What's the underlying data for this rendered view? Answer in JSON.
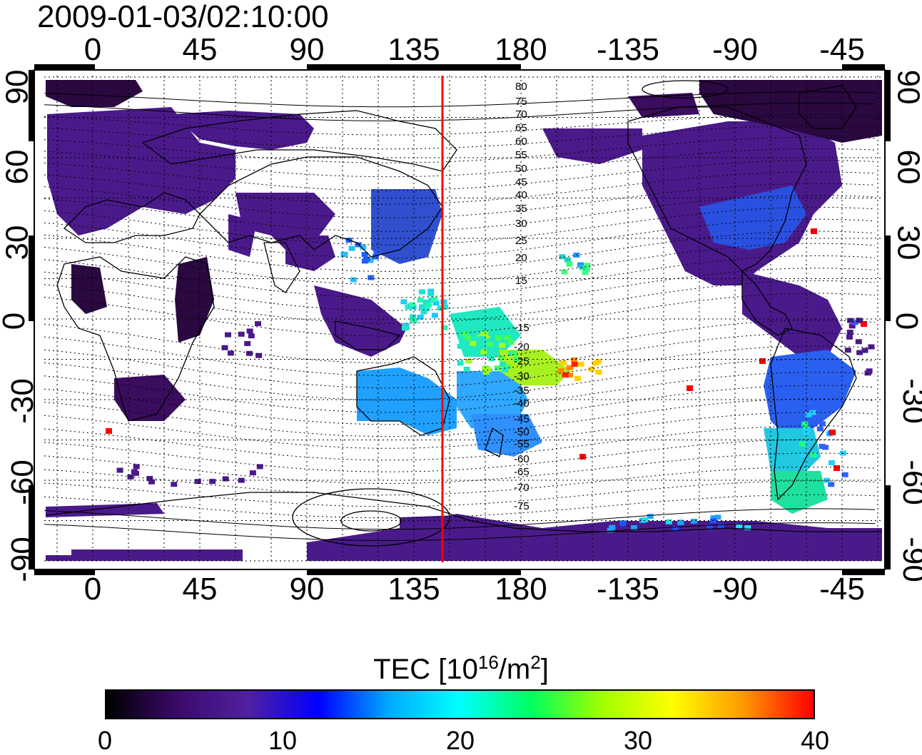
{
  "title": "2009-01-03/02:10:00",
  "axes": {
    "x_top_ticks": [
      "0",
      "45",
      "90",
      "135",
      "180",
      "-135",
      "-90",
      "-45"
    ],
    "x_bottom_ticks": [
      "0",
      "45",
      "90",
      "135",
      "180",
      "-135",
      "-90",
      "-45"
    ],
    "y_left_ticks": [
      "90",
      "60",
      "30",
      "0",
      "-30",
      "-60",
      "-90"
    ],
    "y_right_ticks": [
      "90",
      "60",
      "30",
      "0",
      "-30",
      "-60",
      "-90"
    ]
  },
  "contour_labels_north": [
    "80",
    "75",
    "70",
    "65",
    "60",
    "55",
    "50",
    "45",
    "40",
    "35",
    "30",
    "25",
    "20",
    "15"
  ],
  "contour_labels_south": [
    "-15",
    "-20",
    "-25",
    "-30",
    "-35",
    "-40",
    "-45",
    "-50",
    "-55",
    "-60",
    "-65",
    "-70",
    "-75"
  ],
  "colorbar": {
    "title_main": "TEC  [10",
    "title_sup1": "16",
    "title_mid": "/m",
    "title_sup2": "2",
    "title_end": "]",
    "ticks": [
      "0",
      "10",
      "20",
      "30",
      "40"
    ],
    "min": 0,
    "max": 40
  },
  "colors": {
    "meridian_line": "#ff0000",
    "low_tec": "#3a0a5a",
    "colormap": [
      "#000000",
      "#3a0a6a",
      "#5020a0",
      "#0000ff",
      "#00aaff",
      "#00ffff",
      "#00ff60",
      "#a0ff00",
      "#ffff00",
      "#ff9900",
      "#ff0000"
    ]
  },
  "meridian_marker_lon": 147
}
